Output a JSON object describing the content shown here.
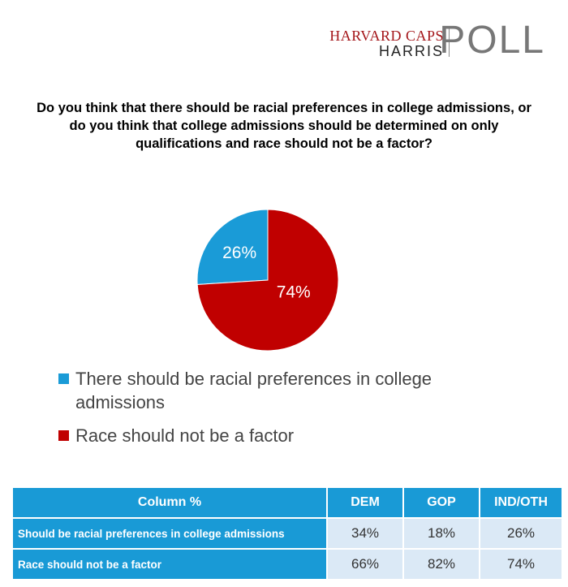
{
  "logo": {
    "line1": "HARVARD CAPS",
    "line2": "HARRIS",
    "word": "POLL"
  },
  "chart_data": {
    "type": "pie",
    "title": "Do you think that there should be racial preferences in college admissions, or do you think that college admissions should be determined on only qualifications and race should not be a factor?",
    "slices": [
      {
        "label": "There should be racial preferences in college admissions",
        "value": 26,
        "display": "26%",
        "color": "#1a9bd7"
      },
      {
        "label": "Race should not be a factor",
        "value": 74,
        "display": "74%",
        "color": "#c00000"
      }
    ],
    "legend_position": "bottom"
  },
  "table": {
    "header": [
      "Column %",
      "DEM",
      "GOP",
      "IND/OTH"
    ],
    "rows": [
      {
        "label": "Should be racial preferences in college admissions",
        "values": [
          "34%",
          "18%",
          "26%"
        ]
      },
      {
        "label": "Race should not be a factor",
        "values": [
          "66%",
          "82%",
          "74%"
        ]
      }
    ]
  }
}
